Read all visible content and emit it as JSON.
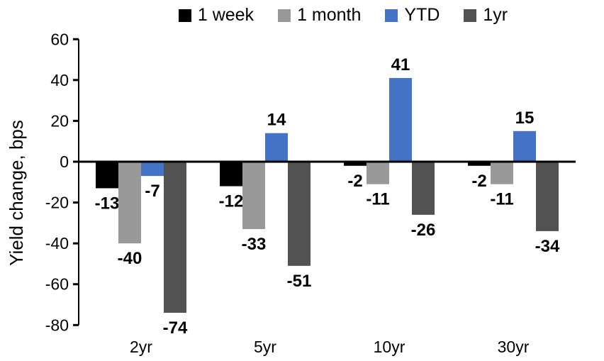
{
  "chart_data": {
    "type": "bar",
    "title": "",
    "ylabel": "Yield change, bps",
    "xlabel": "",
    "categories": [
      "2yr",
      "5yr",
      "10yr",
      "30yr"
    ],
    "series": [
      {
        "name": "1 week",
        "color": "#000000",
        "values": [
          -13,
          -12,
          -2,
          -2
        ]
      },
      {
        "name": "1 month",
        "color": "#999999",
        "values": [
          -40,
          -33,
          -11,
          -11
        ]
      },
      {
        "name": "YTD",
        "color": "#4472C4",
        "values": [
          -7,
          14,
          41,
          15
        ]
      },
      {
        "name": "1yr",
        "color": "#525252",
        "values": [
          -74,
          -51,
          -26,
          -34
        ]
      }
    ],
    "ylim": [
      -80,
      60
    ],
    "yticks": [
      60,
      40,
      20,
      0,
      -20,
      -40,
      -60,
      -80
    ],
    "grid": false,
    "legend_position": "top",
    "data_labels": true,
    "axis_color": "#000000",
    "background": "#FFFFFF"
  }
}
